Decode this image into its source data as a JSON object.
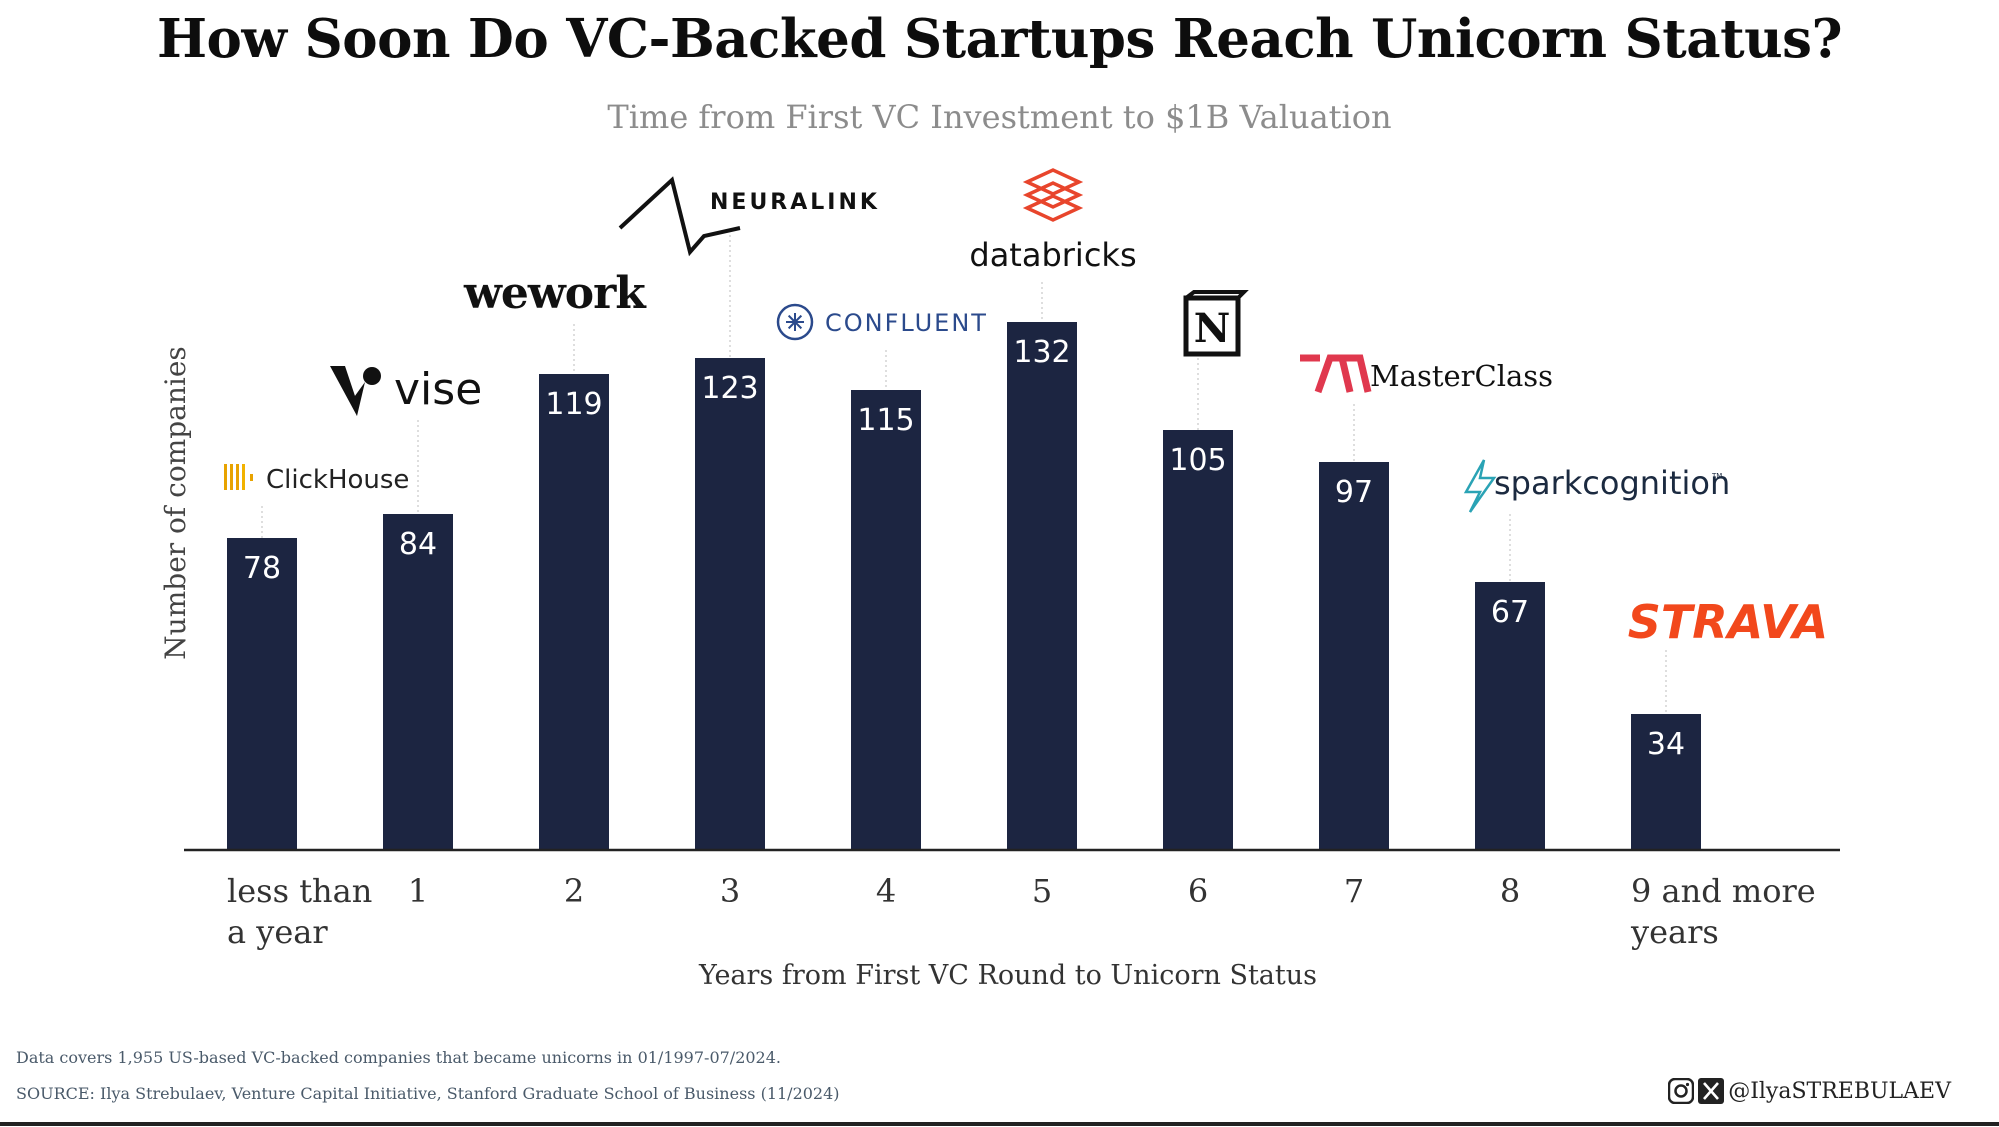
{
  "title": "How Soon Do VC-Backed Startups Reach Unicorn Status?",
  "subtitle": "Time from First VC Investment to $1B Valuation",
  "colors": {
    "bar": "#1c2541",
    "bar_label": "#ffffff",
    "axis": "#222222",
    "leader": "#cccccc"
  },
  "chart_data": {
    "type": "bar",
    "categories": [
      "less than a year",
      "1",
      "2",
      "3",
      "4",
      "5",
      "6",
      "7",
      "8",
      "9 and more years"
    ],
    "category_lines": [
      [
        "less than",
        "a year"
      ],
      [
        "1"
      ],
      [
        "2"
      ],
      [
        "3"
      ],
      [
        "4"
      ],
      [
        "5"
      ],
      [
        "6"
      ],
      [
        "7"
      ],
      [
        "8"
      ],
      [
        "9 and more",
        "years"
      ]
    ],
    "values": [
      78,
      84,
      119,
      123,
      115,
      132,
      105,
      97,
      67,
      34
    ],
    "xlabel": "Years from First VC Round to Unicorn Status",
    "ylabel": "Number of companies",
    "ylim": [
      0,
      140
    ],
    "grid": false,
    "logos": [
      {
        "text": "ClickHouse",
        "icon": "clickhouse-bars-icon"
      },
      {
        "text": "vise",
        "icon": "vise-v-icon"
      },
      {
        "text": "wework",
        "icon": ""
      },
      {
        "text": "NEURALINK",
        "icon": "neuralink-waveform-icon"
      },
      {
        "text": "CONFLUENT",
        "icon": "confluent-starburst-icon"
      },
      {
        "text": "databricks",
        "icon": "databricks-stack-icon"
      },
      {
        "text": "N",
        "icon": "notion-cube-icon"
      },
      {
        "text": "MasterClass",
        "icon": "masterclass-m-icon"
      },
      {
        "text": "sparkcognition",
        "icon": "sparkcognition-bolt-icon"
      },
      {
        "text": "STRAVA",
        "icon": ""
      }
    ]
  },
  "footer": {
    "note": "Data covers 1,955 US-based VC-backed companies that became unicorns in 01/1997-07/2024.",
    "source": "SOURCE: Ilya Strebulaev, Venture Capital Initiative, Stanford Graduate School of Business (11/2024)",
    "handle": "@IlyaSTREBULAEV",
    "icons": [
      "instagram-icon",
      "x-icon"
    ]
  }
}
